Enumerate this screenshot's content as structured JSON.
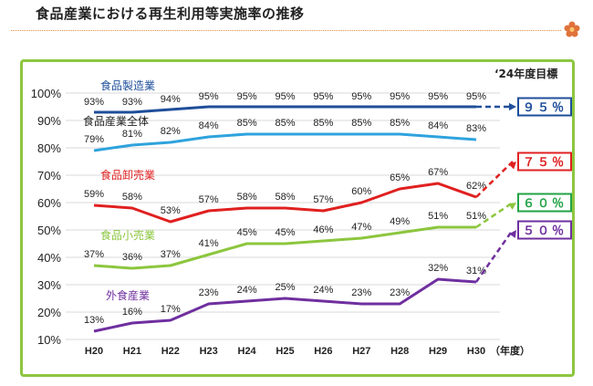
{
  "page": {
    "title": "食品産業における再生利用等実施率の推移"
  },
  "chart_data": {
    "type": "line",
    "title": "",
    "categories": [
      "H20",
      "H21",
      "H22",
      "H23",
      "H24",
      "H25",
      "H26",
      "H27",
      "H28",
      "H29",
      "H30"
    ],
    "x_unit": "（年度）",
    "ylim": [
      10,
      100
    ],
    "yticks": [
      "10%",
      "20%",
      "30%",
      "40%",
      "50%",
      "60%",
      "70%",
      "80%",
      "90%",
      "100%"
    ],
    "grid": true,
    "target_header": "‘24年度目標",
    "series": [
      {
        "name": "食品製造業",
        "color": "#1f4e9a",
        "values": [
          93,
          93,
          94,
          95,
          95,
          95,
          95,
          95,
          95,
          95,
          95
        ],
        "labels": [
          "93%",
          "93%",
          "94%",
          "95%",
          "95%",
          "95%",
          "95%",
          "95%",
          "95%",
          "95%",
          "95%"
        ],
        "target": 95,
        "target_label": "９５％"
      },
      {
        "name": "食品産業全体",
        "color": "#2fa3dd",
        "values": [
          79,
          81,
          82,
          84,
          85,
          85,
          85,
          85,
          85,
          84,
          83
        ],
        "labels": [
          "79%",
          "81%",
          "82%",
          "84%",
          "85%",
          "85%",
          "85%",
          "85%",
          "85%",
          "84%",
          "83%"
        ]
      },
      {
        "name": "食品卸売業",
        "color": "#e02020",
        "values": [
          59,
          58,
          53,
          57,
          58,
          58,
          57,
          60,
          65,
          67,
          62
        ],
        "labels": [
          "59%",
          "58%",
          "53%",
          "57%",
          "58%",
          "58%",
          "57%",
          "60%",
          "65%",
          "67%",
          "62%"
        ],
        "target": 75,
        "target_label": "７５％"
      },
      {
        "name": "食品小売業",
        "color": "#8cc63e",
        "values": [
          37,
          36,
          37,
          41,
          45,
          45,
          46,
          47,
          49,
          51,
          51
        ],
        "labels": [
          "37%",
          "36%",
          "37%",
          "41%",
          "45%",
          "45%",
          "46%",
          "47%",
          "49%",
          "51%",
          "51%"
        ],
        "target": 60,
        "target_label": "６０％"
      },
      {
        "name": "外食産業",
        "color": "#6f2f9f",
        "values": [
          13,
          16,
          17,
          23,
          24,
          25,
          24,
          23,
          23,
          32,
          31
        ],
        "labels": [
          "13%",
          "16%",
          "17%",
          "23%",
          "24%",
          "25%",
          "24%",
          "23%",
          "23%",
          "32%",
          "31%"
        ],
        "target": 50,
        "target_label": "５０％"
      }
    ],
    "target_colors": {
      "食品小売業": "#22a346"
    }
  }
}
